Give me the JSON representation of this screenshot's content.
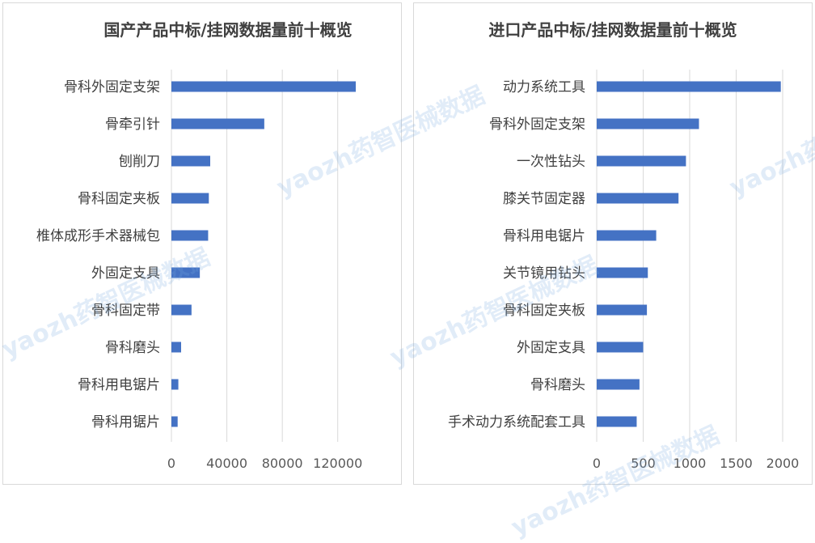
{
  "watermark": "yaozh药智医械数据",
  "chart_data": [
    {
      "type": "bar",
      "orientation": "horizontal",
      "title": "国产产品中标/挂网数据量前十概览",
      "categories": [
        "骨科外固定支架",
        "骨牵引针",
        "刨削刀",
        "骨科固定夹板",
        "椎体成形手术器械包",
        "外固定支具",
        "骨科固定带",
        "骨科磨头",
        "骨科用电锯片",
        "骨科用锯片"
      ],
      "values": [
        133000,
        67000,
        28000,
        27000,
        26500,
        20500,
        14500,
        7000,
        5000,
        4500
      ],
      "xlim": [
        0,
        140000
      ],
      "xticks": [
        0,
        40000,
        80000,
        120000
      ],
      "xtick_labels": [
        "0",
        "40000",
        "80000",
        "120000"
      ],
      "grid": true,
      "color": "#4472c4"
    },
    {
      "type": "bar",
      "orientation": "horizontal",
      "title": "进口产品中标/挂网数据量前十概览",
      "categories": [
        "动力系统工具",
        "骨科外固定支架",
        "一次性钻头",
        "膝关节固定器",
        "骨科用电锯片",
        "关节镜用钻头",
        "骨科固定夹板",
        "外固定支具",
        "骨科磨头",
        "手术动力系统配套工具"
      ],
      "values": [
        1980,
        1100,
        960,
        880,
        640,
        550,
        540,
        500,
        460,
        430
      ],
      "xlim": [
        0,
        2000
      ],
      "xticks": [
        0,
        500,
        1000,
        1500,
        2000
      ],
      "xtick_labels": [
        "0",
        "500",
        "1000",
        "1500",
        "2000"
      ],
      "grid": true,
      "color": "#4472c4"
    }
  ]
}
